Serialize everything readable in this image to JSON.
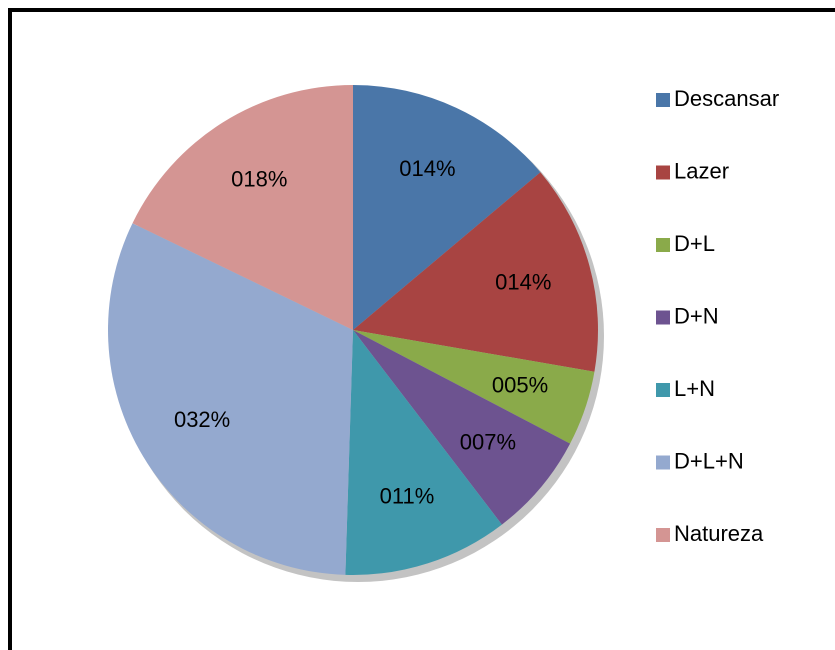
{
  "chart_data": {
    "type": "pie",
    "categories": [
      "Descansar",
      "Lazer",
      "D+L",
      "D+N",
      "L+N",
      "D+L+N",
      "Natureza"
    ],
    "values": [
      14,
      14,
      5,
      7,
      11,
      32,
      18
    ],
    "value_labels": [
      "014%",
      "014%",
      "005%",
      "007%",
      "011%",
      "032%",
      "018%"
    ],
    "colors": [
      "#4a76a8",
      "#a84442",
      "#8aaa4a",
      "#6d5390",
      "#3f98ab",
      "#94a9cf",
      "#d49593"
    ],
    "legend": "right"
  }
}
